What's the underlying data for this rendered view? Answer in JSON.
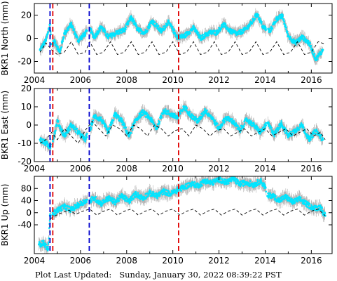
{
  "footer": {
    "label": "Plot Last Updated:",
    "timestamp": "Sunday, January 30, 2022 08:39:22 PST"
  },
  "colors": {
    "data": "#00e5ff",
    "error_bars": "#b0b0b0",
    "model": "#000000",
    "event_red": "#e00000",
    "event_blue": "#0000cc"
  },
  "chart_data": [
    {
      "type": "scatter",
      "ylabel": "BKR1 North (mm)",
      "xlim": [
        2004,
        2016.9
      ],
      "ylim": [
        -30,
        30
      ],
      "xticks": [
        2004,
        2006,
        2008,
        2010,
        2012,
        2014,
        2016
      ],
      "yticks": [
        -20,
        0,
        20
      ],
      "vlines_red": [
        2004.8,
        2010.25
      ],
      "vlines_blue": [
        2004.68,
        2006.38
      ],
      "grid": false,
      "legend": "none",
      "series": [
        {
          "style": "points-with-error-bars",
          "x": [
            2004.25,
            2004.5,
            2004.68,
            2004.75,
            2004.9,
            2005.1,
            2005.3,
            2005.6,
            2005.9,
            2006.2,
            2006.4,
            2006.6,
            2006.9,
            2007.2,
            2007.6,
            2007.9,
            2008.2,
            2008.5,
            2008.8,
            2009.1,
            2009.5,
            2009.8,
            2010.2,
            2010.5,
            2010.9,
            2011.2,
            2011.6,
            2011.9,
            2012.2,
            2012.5,
            2012.8,
            2013.1,
            2013.4,
            2013.65,
            2013.9,
            2014.2,
            2014.5,
            2014.75,
            2015.0,
            2015.3,
            2015.6,
            2015.9,
            2016.2,
            2016.5
          ],
          "y": [
            -10,
            -2,
            12,
            -5,
            -3,
            -12,
            4,
            12,
            -2,
            4,
            8,
            1,
            10,
            1,
            5,
            7,
            18,
            7,
            5,
            15,
            6,
            14,
            1,
            2,
            9,
            0,
            5,
            5,
            12,
            6,
            4,
            7,
            13,
            21,
            10,
            6,
            17,
            19,
            2,
            -4,
            1,
            -4,
            -18,
            -10
          ]
        },
        {
          "style": "dashed-model",
          "x": [
            2004.25,
            2004.5,
            2004.75,
            2005.0,
            2005.3,
            2005.6,
            2005.9,
            2006.2,
            2006.4,
            2006.7,
            2007.0,
            2007.3,
            2007.6,
            2007.9,
            2008.2,
            2008.5,
            2008.8,
            2009.1,
            2009.4,
            2009.7,
            2010.0,
            2010.3,
            2010.6,
            2010.9,
            2011.2,
            2011.5,
            2011.8,
            2012.1,
            2012.4,
            2012.7,
            2013.0,
            2013.3,
            2013.6,
            2013.9,
            2014.2,
            2014.5,
            2014.8,
            2015.1,
            2015.4,
            2015.7,
            2016.0,
            2016.3,
            2016.6
          ],
          "y": [
            -12,
            -4,
            -10,
            -14,
            -12,
            -3,
            -14,
            -12,
            -3,
            -14,
            -12,
            -3,
            -14,
            -12,
            -3,
            -14,
            -12,
            -3,
            -14,
            -12,
            -3,
            -14,
            -12,
            -3,
            -14,
            -12,
            -3,
            -14,
            -12,
            -3,
            -14,
            -12,
            -3,
            -14,
            -12,
            -3,
            -14,
            -12,
            -3,
            -14,
            -12,
            -3,
            -5
          ]
        }
      ]
    },
    {
      "type": "scatter",
      "ylabel": "BKR1 East (mm)",
      "xlim": [
        2004,
        2016.9
      ],
      "ylim": [
        -20,
        20
      ],
      "xticks": [
        2004,
        2006,
        2008,
        2010,
        2012,
        2014,
        2016
      ],
      "yticks": [
        -20,
        -10,
        0,
        10,
        20
      ],
      "vlines_red": [
        2004.8,
        2010.25
      ],
      "vlines_blue": [
        2004.68,
        2006.38
      ],
      "grid": false,
      "legend": "none",
      "series": [
        {
          "style": "points-with-error-bars",
          "x": [
            2004.25,
            2004.5,
            2004.68,
            2004.85,
            2005.0,
            2005.3,
            2005.6,
            2005.9,
            2006.2,
            2006.4,
            2006.6,
            2006.9,
            2007.2,
            2007.5,
            2007.8,
            2008.1,
            2008.4,
            2008.7,
            2009.0,
            2009.3,
            2009.6,
            2009.9,
            2010.2,
            2010.5,
            2010.8,
            2011.1,
            2011.4,
            2011.7,
            2012.0,
            2012.3,
            2012.6,
            2012.9,
            2013.2,
            2013.5,
            2013.8,
            2014.1,
            2014.4,
            2014.7,
            2015.0,
            2015.3,
            2015.6,
            2015.9,
            2016.2,
            2016.5
          ],
          "y": [
            -8,
            -10,
            -12,
            -6,
            2,
            -6,
            0,
            -4,
            -8,
            -3,
            5,
            3,
            -4,
            6,
            2,
            -6,
            3,
            7,
            4,
            -2,
            8,
            6,
            4,
            10,
            5,
            2,
            8,
            4,
            -2,
            4,
            2,
            -3,
            3,
            0,
            -4,
            1,
            -5,
            1,
            -6,
            -3,
            0,
            -8,
            -3,
            -8
          ]
        },
        {
          "style": "dashed-model",
          "x": [
            2004.25,
            2004.5,
            2004.75,
            2005.0,
            2005.3,
            2005.6,
            2005.9,
            2006.2,
            2006.5,
            2006.8,
            2007.1,
            2007.4,
            2007.7,
            2008.0,
            2008.3,
            2008.6,
            2008.9,
            2009.2,
            2009.5,
            2009.8,
            2010.1,
            2010.4,
            2010.7,
            2011.0,
            2011.3,
            2011.6,
            2011.9,
            2012.2,
            2012.5,
            2012.8,
            2013.1,
            2013.4,
            2013.7,
            2014.0,
            2014.3,
            2014.6,
            2014.9,
            2015.2,
            2015.5,
            2015.8,
            2016.1,
            2016.4,
            2016.6
          ],
          "y": [
            -10,
            -8,
            -4,
            -8,
            -2,
            -6,
            -10,
            -3,
            2,
            -2,
            -6,
            0,
            -2,
            -6,
            0,
            -2,
            -6,
            0,
            -2,
            -6,
            -3,
            -2,
            -6,
            0,
            -2,
            -6,
            -3,
            -2,
            -6,
            -4,
            -2,
            -6,
            -4,
            -2,
            -6,
            -4,
            -2,
            -6,
            -4,
            -2,
            -6,
            -4,
            -8
          ]
        }
      ]
    },
    {
      "type": "scatter",
      "ylabel": "BKR1 Up (mm)",
      "xlim": [
        2004,
        2016.9
      ],
      "ylim": [
        -135,
        120
      ],
      "xticks": [
        2004,
        2006,
        2008,
        2010,
        2012,
        2014,
        2016
      ],
      "yticks": [
        -40,
        0,
        40,
        80
      ],
      "vlines_red": [
        2004.8,
        2010.25
      ],
      "vlines_blue": [
        2004.68,
        2006.38
      ],
      "grid": false,
      "legend": "none",
      "series": [
        {
          "style": "points-with-error-bars",
          "x": [
            2004.2,
            2004.4,
            2004.6,
            2004.68,
            2004.8,
            2005.0,
            2005.3,
            2005.6,
            2005.9,
            2006.2,
            2006.4,
            2006.6,
            2006.9,
            2007.2,
            2007.5,
            2007.8,
            2008.1,
            2008.4,
            2008.7,
            2009.0,
            2009.3,
            2009.6,
            2009.9,
            2010.2,
            2010.5,
            2010.8,
            2011.1,
            2011.4,
            2011.7,
            2012.0,
            2012.3,
            2012.6,
            2012.9,
            2013.2,
            2013.5,
            2013.8,
            2014.0,
            2014.1,
            2014.3,
            2014.6,
            2014.9,
            2015.2,
            2015.5,
            2015.8,
            2016.1,
            2016.4,
            2016.6
          ],
          "y": [
            -105,
            -100,
            -120,
            -10,
            -5,
            8,
            20,
            10,
            25,
            38,
            40,
            48,
            30,
            48,
            35,
            55,
            38,
            62,
            48,
            65,
            55,
            70,
            62,
            75,
            85,
            95,
            90,
            105,
            98,
            110,
            100,
            112,
            95,
            100,
            92,
            105,
            85,
            55,
            58,
            40,
            52,
            35,
            45,
            28,
            15,
            18,
            -10
          ]
        },
        {
          "style": "dashed-model",
          "x": [
            2004.7,
            2004.9,
            2005.2,
            2005.5,
            2005.8,
            2006.1,
            2006.4,
            2006.7,
            2007.0,
            2007.3,
            2007.6,
            2007.9,
            2008.2,
            2008.5,
            2008.8,
            2009.1,
            2009.4,
            2009.7,
            2010.0,
            2010.3,
            2010.6,
            2010.9,
            2011.2,
            2011.5,
            2011.8,
            2012.1,
            2012.4,
            2012.7,
            2013.0,
            2013.3,
            2013.6,
            2013.9,
            2014.2,
            2014.5,
            2014.8,
            2015.1,
            2015.4,
            2015.7,
            2016.0,
            2016.3,
            2016.6
          ],
          "y": [
            -20,
            -10,
            0,
            8,
            -5,
            5,
            12,
            -8,
            5,
            12,
            -8,
            5,
            12,
            -8,
            5,
            12,
            -8,
            5,
            12,
            -8,
            5,
            12,
            -8,
            5,
            12,
            -8,
            5,
            12,
            -8,
            5,
            12,
            -8,
            5,
            12,
            -8,
            5,
            12,
            -8,
            5,
            12,
            -10
          ]
        }
      ]
    }
  ]
}
